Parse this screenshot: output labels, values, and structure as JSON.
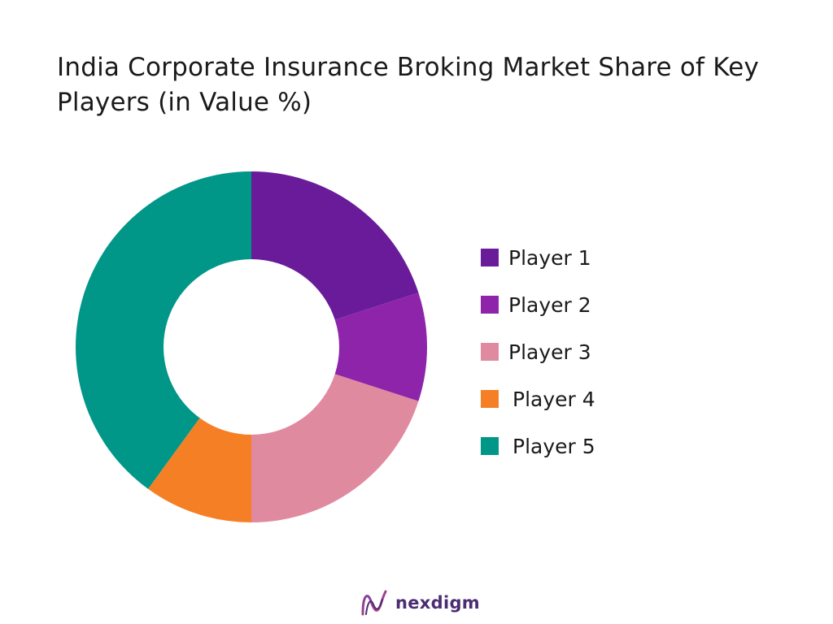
{
  "header": {
    "title": "India Corporate Insurance Broking Market Share of Key Players (in Value %)"
  },
  "chart_data": {
    "type": "pie",
    "variant": "donut",
    "title": "India Corporate Insurance Broking Market Share of Key Players (in Value %)",
    "categories": [
      "Player 1",
      "Player 2",
      "Player 3",
      "Player 4",
      "Player 5"
    ],
    "values": [
      20,
      10,
      20,
      10,
      40
    ],
    "colors": [
      "#6a1b9a",
      "#8e24aa",
      "#e08aa0",
      "#f57f25",
      "#009688"
    ],
    "legend": "right"
  },
  "brand": {
    "logo_text": "nexdigm",
    "logo_icon": "nexdigm-wave-icon",
    "accent": "#4a2d73"
  }
}
